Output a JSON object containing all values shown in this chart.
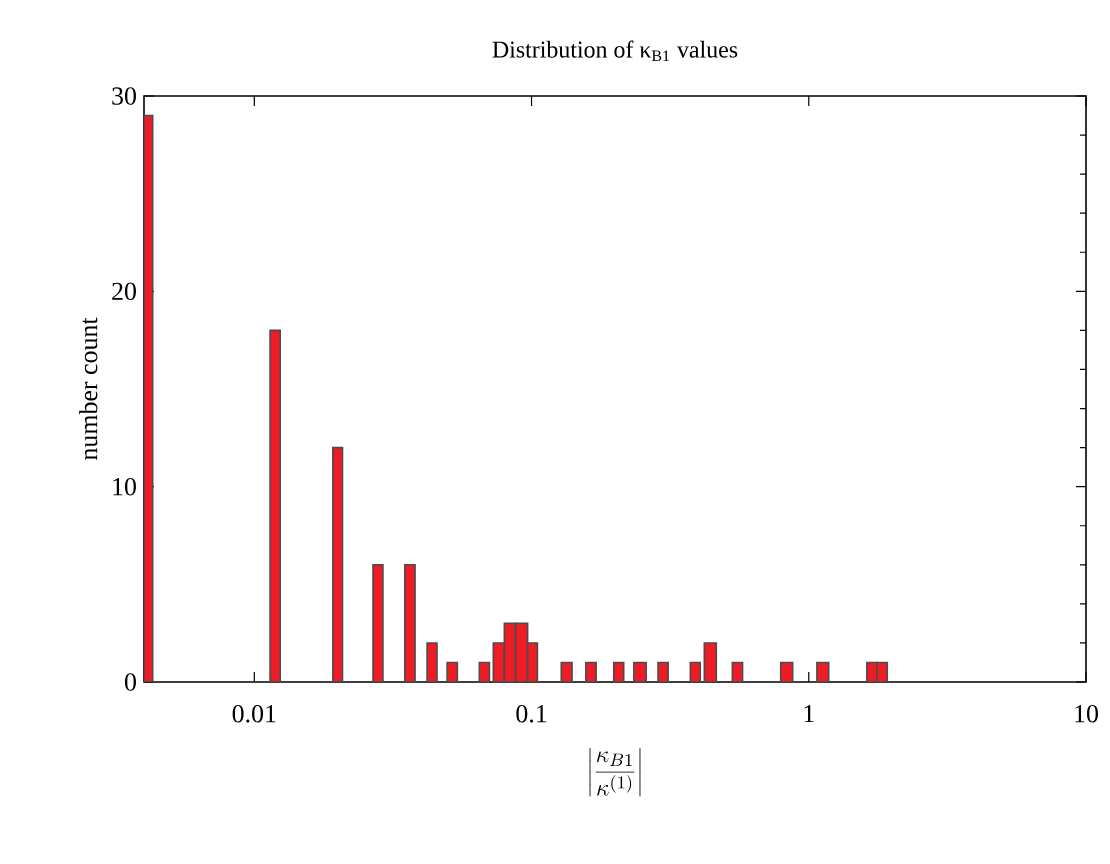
{
  "chart_data": {
    "type": "histogram",
    "title": "Distribution of κ$_{B1}$ values",
    "xlabel": "\\left|\\frac{\\kappa_{B1}}{\\kappa^{(1)}}\\right|",
    "ylabel": "number count",
    "bins": [
      0.004,
      0.0043,
      0.0114,
      0.0124,
      0.0192,
      0.0208,
      0.0268,
      0.0291,
      0.0349,
      0.038,
      0.042,
      0.0456,
      0.0496,
      0.054,
      0.0648,
      0.0705,
      0.0728,
      0.0798,
      0.0875,
      0.0968,
      0.105,
      0.128,
      0.14,
      0.157,
      0.171,
      0.198,
      0.215,
      0.234,
      0.259,
      0.286,
      0.311,
      0.374,
      0.406,
      0.42,
      0.464,
      0.53,
      0.577,
      0.792,
      0.875,
      1.07,
      1.18,
      1.62,
      1.76,
      1.92
    ],
    "values": [
      29,
      0,
      18,
      0,
      12,
      0,
      6,
      0,
      6,
      0,
      2,
      0,
      1,
      0,
      1,
      0,
      2,
      3,
      3,
      2,
      0,
      1,
      0,
      1,
      0,
      1,
      0,
      1,
      0,
      1,
      0,
      1,
      0,
      2,
      0,
      1,
      0,
      1,
      0,
      1,
      0,
      1,
      1
    ],
    "color": "#ee1c24",
    "log": "x",
    "xlim": [
      0.004,
      10
    ],
    "xticks": [
      0.01,
      0.1,
      1,
      10
    ],
    "ylim": [
      0,
      30
    ],
    "yticks": [
      0,
      10,
      20,
      30
    ]
  }
}
